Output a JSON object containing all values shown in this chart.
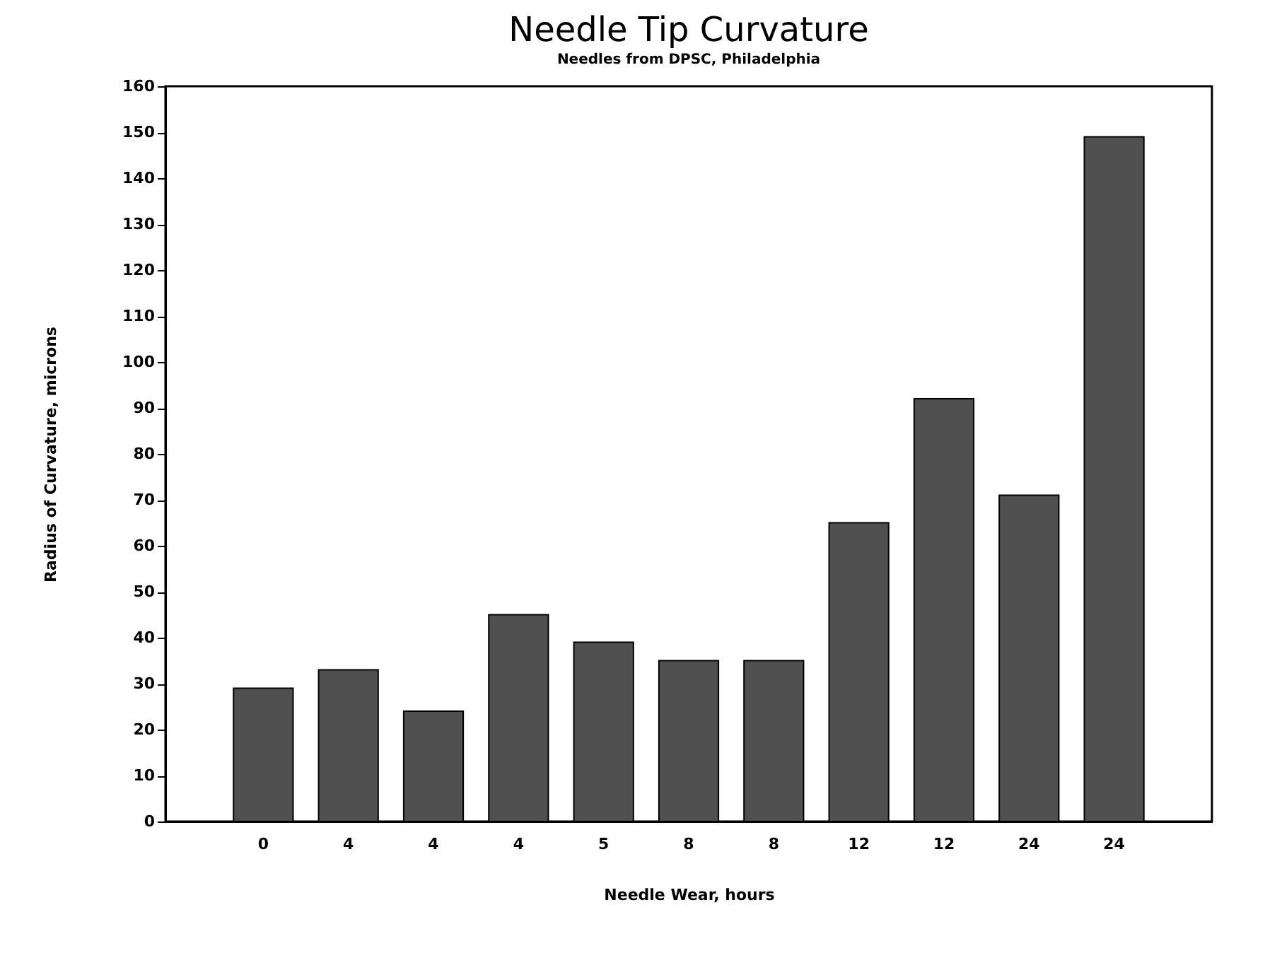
{
  "chart_data": {
    "type": "bar",
    "title": "Needle Tip Curvature",
    "subtitle": "Needles from DPSC, Philadelphia",
    "xlabel": "Needle Wear, hours",
    "ylabel": "Radius of Curvature, microns",
    "categories": [
      "0",
      "4",
      "4",
      "4",
      "5",
      "8",
      "8",
      "12",
      "12",
      "24",
      "24"
    ],
    "values": [
      29,
      33,
      24,
      45,
      39,
      35,
      35,
      65,
      92,
      71,
      149
    ],
    "color": "#505050",
    "ylim": [
      0,
      160
    ],
    "yticks": [
      0,
      10,
      20,
      30,
      40,
      50,
      60,
      70,
      80,
      90,
      100,
      110,
      120,
      130,
      140,
      150,
      160
    ],
    "grid": false
  }
}
